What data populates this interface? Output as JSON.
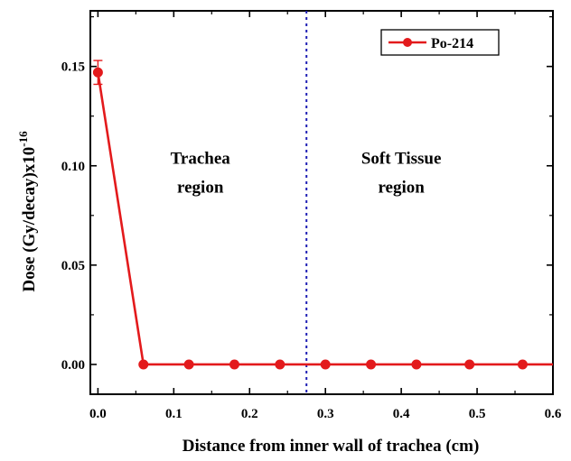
{
  "chart_data": {
    "type": "line",
    "xlabel": "Distance from inner wall of trachea (cm)",
    "ylabel_main": "Dose (Gy/decay)x10",
    "ylabel_exp": "-16",
    "xlim": [
      -0.01,
      0.6
    ],
    "ylim": [
      -0.015,
      0.178
    ],
    "xticks": [
      0.0,
      0.1,
      0.2,
      0.3,
      0.4,
      0.5,
      0.6
    ],
    "xtick_labels": [
      "0.0",
      "0.1",
      "0.2",
      "0.3",
      "0.4",
      "0.5",
      "0.6"
    ],
    "yticks": [
      0.0,
      0.05,
      0.1,
      0.15
    ],
    "ytick_labels": [
      "0.00",
      "0.05",
      "0.10",
      "0.15"
    ],
    "series": [
      {
        "name": "Po-214",
        "color": "#e31a1c",
        "marker": "circle",
        "x": [
          0.0,
          0.06,
          0.12,
          0.18,
          0.24,
          0.3,
          0.36,
          0.42,
          0.49,
          0.56,
          0.6
        ],
        "y": [
          0.147,
          0.0,
          0.0,
          0.0,
          0.0,
          0.0,
          0.0,
          0.0,
          0.0,
          0.0,
          0.0
        ],
        "markers_shown": [
          true,
          true,
          true,
          true,
          true,
          true,
          true,
          true,
          true,
          true,
          false
        ],
        "error_bar": {
          "index": 0,
          "err": 0.006
        }
      }
    ],
    "vline": {
      "x": 0.275,
      "style": "dotted",
      "color": "#1f1fb4"
    },
    "annotations": [
      {
        "lines": [
          "Trachea",
          "region"
        ],
        "x": 0.135,
        "y_top": 0.101
      },
      {
        "lines": [
          "Soft Tissue",
          "region"
        ],
        "x": 0.4,
        "y_top": 0.101
      }
    ],
    "legend": {
      "position": "top-right"
    },
    "grid": false
  }
}
